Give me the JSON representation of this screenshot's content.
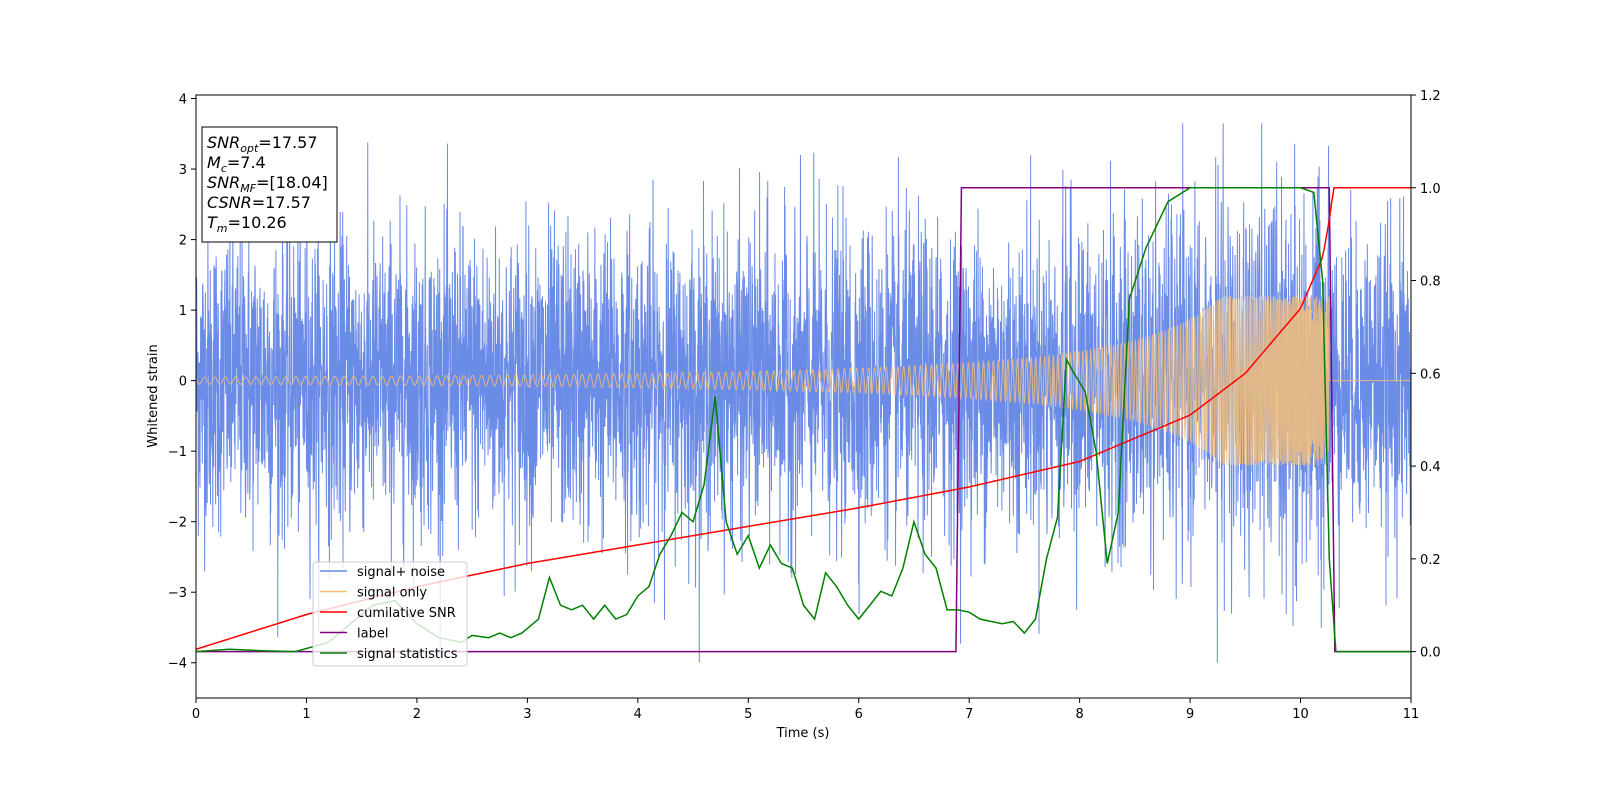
{
  "chart_data": {
    "type": "line",
    "title": "",
    "xlabel": "Time (s)",
    "ylabel": "Whitened strain",
    "xlim": [
      0,
      11
    ],
    "ylim": [
      -4.5,
      4.05
    ],
    "y2lim": [
      -0.1,
      1.2
    ],
    "grid": false,
    "legend_position": "lower-left",
    "x_ticks": [
      "0",
      "1",
      "2",
      "3",
      "4",
      "5",
      "6",
      "7",
      "8",
      "9",
      "10",
      "11"
    ],
    "y_ticks": [
      "−4",
      "−3",
      "−2",
      "−1",
      "0",
      "1",
      "2",
      "3",
      "4"
    ],
    "y2_ticks": [
      "0.0",
      "0.2",
      "0.4",
      "0.6",
      "0.8",
      "1.0",
      "1.2"
    ],
    "annotation": {
      "lines": [
        {
          "base": "SNR",
          "sub": "opt",
          "value": "=17.57"
        },
        {
          "base": "M",
          "sub": "c",
          "value": "=7.4"
        },
        {
          "base": "SNR",
          "sub": "MF",
          "value": "=[18.04]"
        },
        {
          "base": "CSNR",
          "sub": "",
          "value": "=17.57"
        },
        {
          "base": "T",
          "sub": "m",
          "value": "=10.26"
        }
      ]
    },
    "series": [
      {
        "name": "signal+ noise",
        "color": "#6a8be6",
        "axis": "left",
        "description_range": [
          -4.0,
          3.65
        ]
      },
      {
        "name": "signal only",
        "color": "#f5be78",
        "axis": "left",
        "amplitude_start": 0.05,
        "amplitude_peak": 1.2,
        "merger_time": 10.26
      },
      {
        "name": "cumilative SNR",
        "color": "#ff0000",
        "axis": "right",
        "x": [
          0,
          1,
          2,
          3,
          4,
          5,
          6,
          7,
          8,
          9,
          9.5,
          10,
          10.2,
          10.26,
          10.3,
          11
        ],
        "values": [
          0.005,
          0.08,
          0.14,
          0.19,
          0.23,
          0.27,
          0.31,
          0.355,
          0.41,
          0.51,
          0.6,
          0.74,
          0.85,
          0.93,
          1.0,
          1.0
        ]
      },
      {
        "name": "label",
        "color": "#800080",
        "axis": "right",
        "x": [
          0,
          6.88,
          6.93,
          10.26,
          10.31,
          11
        ],
        "values": [
          0,
          0,
          1,
          1,
          0,
          0
        ]
      },
      {
        "name": "signal statistics",
        "color": "#008000",
        "axis": "right",
        "x": [
          0,
          0.3,
          0.6,
          0.9,
          1.2,
          1.4,
          1.6,
          1.8,
          2.0,
          2.2,
          2.4,
          2.5,
          2.65,
          2.75,
          2.85,
          2.95,
          3.1,
          3.2,
          3.3,
          3.4,
          3.5,
          3.6,
          3.7,
          3.8,
          3.9,
          4.0,
          4.1,
          4.2,
          4.3,
          4.4,
          4.5,
          4.6,
          4.7,
          4.8,
          4.9,
          5.0,
          5.1,
          5.2,
          5.3,
          5.4,
          5.5,
          5.6,
          5.7,
          5.8,
          5.9,
          6.0,
          6.1,
          6.2,
          6.3,
          6.4,
          6.5,
          6.6,
          6.7,
          6.8,
          6.9,
          7.0,
          7.1,
          7.2,
          7.3,
          7.4,
          7.5,
          7.6,
          7.7,
          7.8,
          7.88,
          7.95,
          8.05,
          8.15,
          8.25,
          8.35,
          8.45,
          8.6,
          8.8,
          9.0,
          9.5,
          10.0,
          10.12,
          10.2,
          10.26,
          10.32,
          10.5,
          11
        ],
        "values": [
          0,
          0.005,
          0.002,
          0.0,
          0.02,
          0.06,
          0.1,
          0.11,
          0.06,
          0.03,
          0.02,
          0.035,
          0.03,
          0.04,
          0.03,
          0.04,
          0.07,
          0.16,
          0.1,
          0.09,
          0.1,
          0.07,
          0.1,
          0.07,
          0.08,
          0.12,
          0.14,
          0.21,
          0.25,
          0.3,
          0.28,
          0.36,
          0.55,
          0.28,
          0.21,
          0.25,
          0.18,
          0.23,
          0.19,
          0.18,
          0.1,
          0.07,
          0.17,
          0.14,
          0.1,
          0.07,
          0.1,
          0.13,
          0.12,
          0.18,
          0.28,
          0.21,
          0.18,
          0.09,
          0.09,
          0.085,
          0.07,
          0.065,
          0.06,
          0.065,
          0.04,
          0.07,
          0.2,
          0.29,
          0.63,
          0.6,
          0.56,
          0.43,
          0.19,
          0.3,
          0.76,
          0.87,
          0.97,
          1.0,
          1.0,
          1.0,
          0.99,
          0.8,
          0.2,
          0.0,
          0.0,
          0.0
        ]
      }
    ]
  }
}
